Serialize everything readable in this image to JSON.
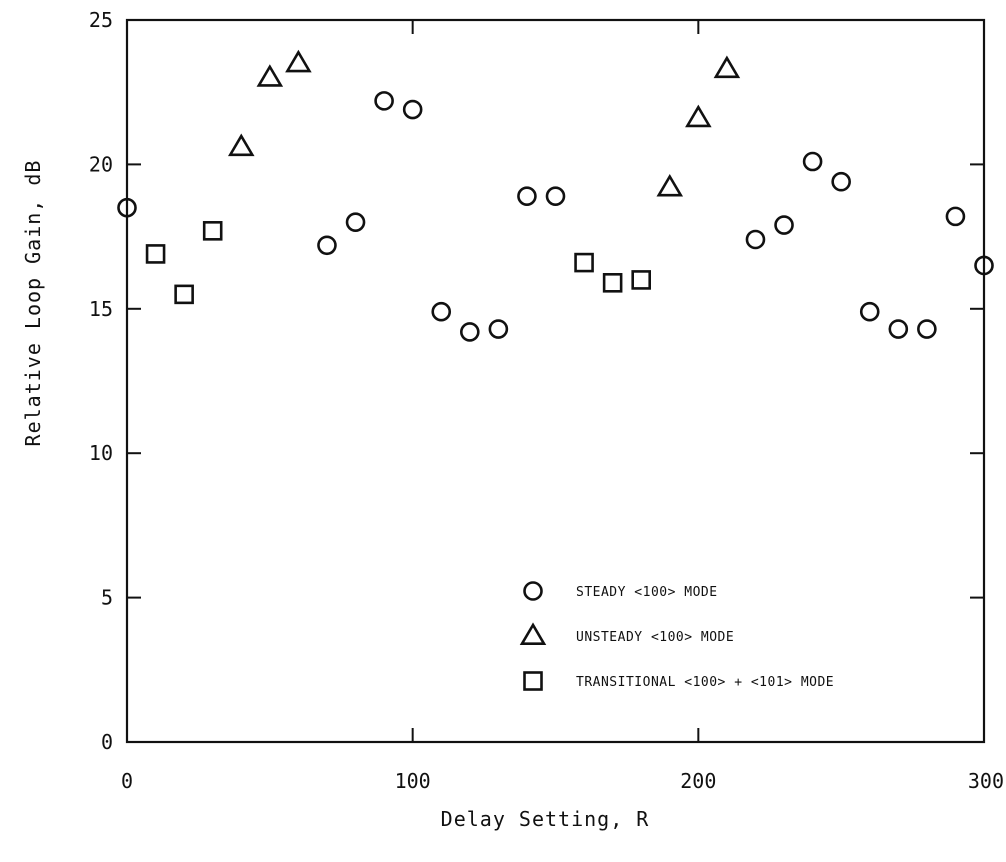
{
  "chart_data": {
    "type": "scatter",
    "xlabel": "Delay Setting, R",
    "ylabel": "Relative Loop Gain, dB",
    "xlim": [
      0,
      300
    ],
    "ylim": [
      0,
      25
    ],
    "x_ticks": [
      "0",
      "100",
      "200",
      "300"
    ],
    "y_ticks": [
      "0",
      "5",
      "10",
      "15",
      "20",
      "25"
    ],
    "grid": false,
    "legend_position": "lower-right",
    "series": [
      {
        "name": "STEADY <100> MODE",
        "marker": "circle",
        "points": [
          [
            0,
            18.5
          ],
          [
            70,
            17.2
          ],
          [
            80,
            18.0
          ],
          [
            90,
            22.2
          ],
          [
            100,
            21.9
          ],
          [
            110,
            14.9
          ],
          [
            120,
            14.2
          ],
          [
            130,
            14.3
          ],
          [
            140,
            18.9
          ],
          [
            150,
            18.9
          ],
          [
            220,
            17.4
          ],
          [
            230,
            17.9
          ],
          [
            240,
            20.1
          ],
          [
            250,
            19.4
          ],
          [
            260,
            14.9
          ],
          [
            270,
            14.3
          ],
          [
            280,
            14.3
          ],
          [
            290,
            18.2
          ],
          [
            300,
            16.5
          ]
        ]
      },
      {
        "name": "UNSTEADY <100> MODE",
        "marker": "triangle",
        "points": [
          [
            40,
            20.6
          ],
          [
            50,
            23.0
          ],
          [
            60,
            23.5
          ],
          [
            190,
            19.2
          ],
          [
            200,
            21.6
          ],
          [
            210,
            23.3
          ]
        ]
      },
      {
        "name": "TRANSITIONAL <100> + <101> MODE",
        "marker": "square",
        "points": [
          [
            10,
            16.9
          ],
          [
            20,
            15.5
          ],
          [
            30,
            17.7
          ],
          [
            160,
            16.6
          ],
          [
            170,
            15.9
          ],
          [
            180,
            16.0
          ]
        ]
      }
    ]
  }
}
